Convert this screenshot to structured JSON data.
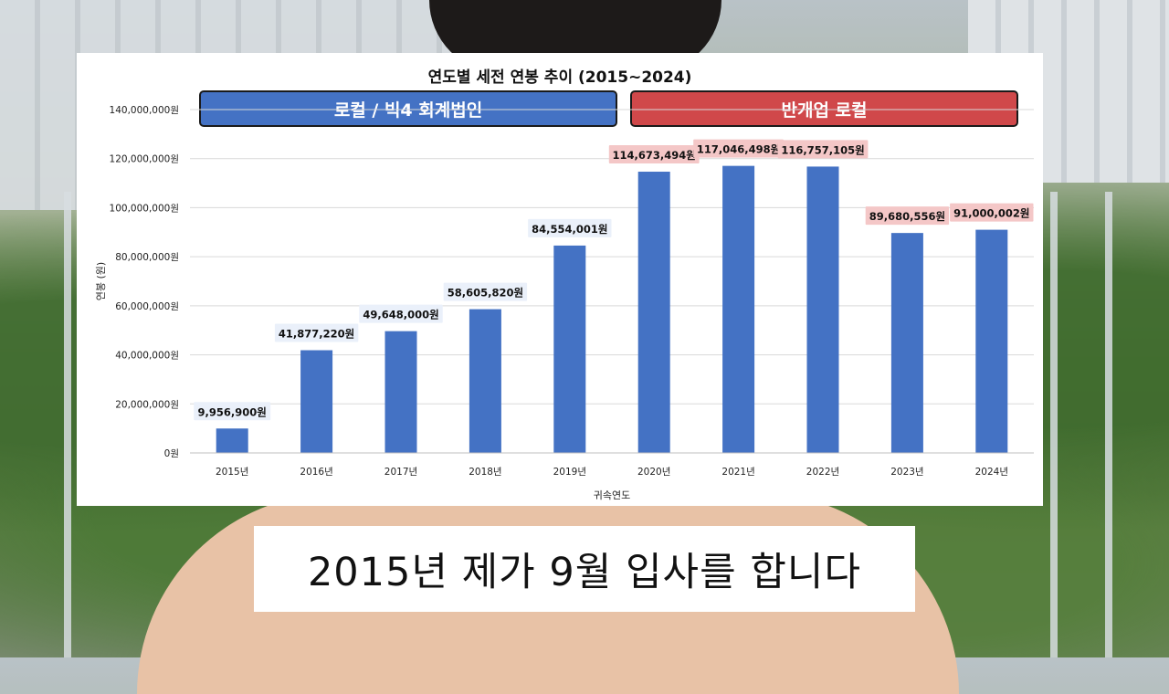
{
  "caption": "2015년 제가 9월 입사를 합니다",
  "colors": {
    "bar": "#4472c4",
    "banner_left": "#4472c4",
    "banner_right": "#d0484a",
    "highlight_label_bg": "#f4c7c7",
    "plain_label_bg": "#eaf0fa"
  },
  "chart_data": {
    "type": "bar",
    "title": "연도별 세전 연봉 추이 (2015~2024)",
    "xlabel": "귀속연도",
    "ylabel": "연봉 (원)",
    "categories": [
      "2015년",
      "2016년",
      "2017년",
      "2018년",
      "2019년",
      "2020년",
      "2021년",
      "2022년",
      "2023년",
      "2024년"
    ],
    "values": [
      9956900,
      41877220,
      49648000,
      58605820,
      84554001,
      114673494,
      117046498,
      116757105,
      89680556,
      91000002
    ],
    "data_labels": [
      "9,956,900원",
      "41,877,220원",
      "49,648,000원",
      "58,605,820원",
      "84,554,001원",
      "114,673,494원",
      "117,046,498원",
      "116,757,105원",
      "89,680,556원",
      "91,000,002원"
    ],
    "highlighted": [
      false,
      false,
      false,
      false,
      false,
      true,
      true,
      true,
      true,
      true
    ],
    "ylim": [
      0,
      140000000
    ],
    "yticks": [
      0,
      20000000,
      40000000,
      60000000,
      80000000,
      100000000,
      120000000,
      140000000
    ],
    "ytick_labels": [
      "0원",
      "20,000,000원",
      "40,000,000원",
      "60,000,000원",
      "80,000,000원",
      "100,000,000원",
      "120,000,000원",
      "140,000,000원"
    ],
    "grid": true,
    "groups": [
      {
        "label": "로컬 / 빅4 회계법인",
        "years": [
          "2015년",
          "2016년",
          "2017년",
          "2018년",
          "2019년"
        ]
      },
      {
        "label": "반개업 로컬",
        "years": [
          "2020년",
          "2021년",
          "2022년",
          "2023년",
          "2024년"
        ]
      }
    ]
  }
}
